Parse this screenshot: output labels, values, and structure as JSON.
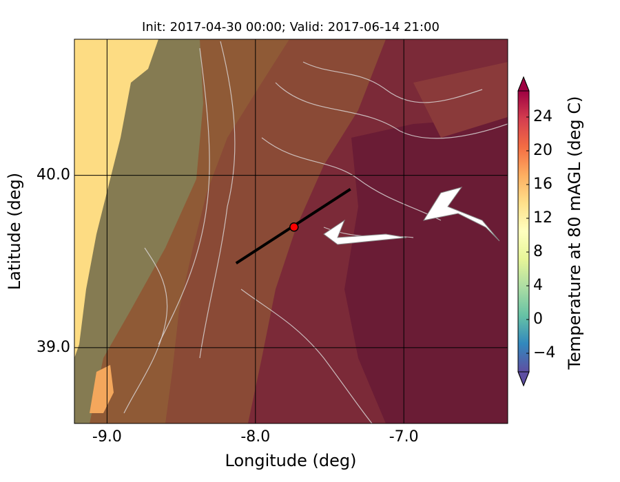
{
  "chart_data": {
    "type": "map",
    "title": "Init: 2017-04-30 00:00; Valid: 2017-06-14 21:00",
    "x_label": "Longitude (deg)",
    "y_label": "Latitude (deg)",
    "xlim": [
      -9.22,
      -6.3
    ],
    "ylim": [
      38.56,
      40.79
    ],
    "xticks": [
      {
        "value": -9,
        "label": "-9.0"
      },
      {
        "value": -8,
        "label": "-8.0"
      },
      {
        "value": -7,
        "label": "-7.0"
      }
    ],
    "yticks": [
      {
        "value": 39,
        "label": "39.0"
      },
      {
        "value": 40,
        "label": "40.0"
      }
    ],
    "grid": true,
    "transect": {
      "x": [
        -8.13,
        -7.36
      ],
      "y": [
        39.49,
        39.92
      ],
      "color": "#000000"
    },
    "point": {
      "x": -7.74,
      "y": 39.7,
      "color": "#ff0000"
    },
    "colorbar": {
      "label": "Temperature at 80 mAGL (deg C)",
      "lim": [
        -6.2,
        27.1
      ],
      "ticks": [
        {
          "value": -4,
          "label": "−4"
        },
        0,
        4,
        8,
        12,
        16,
        20,
        24
      ]
    }
  }
}
